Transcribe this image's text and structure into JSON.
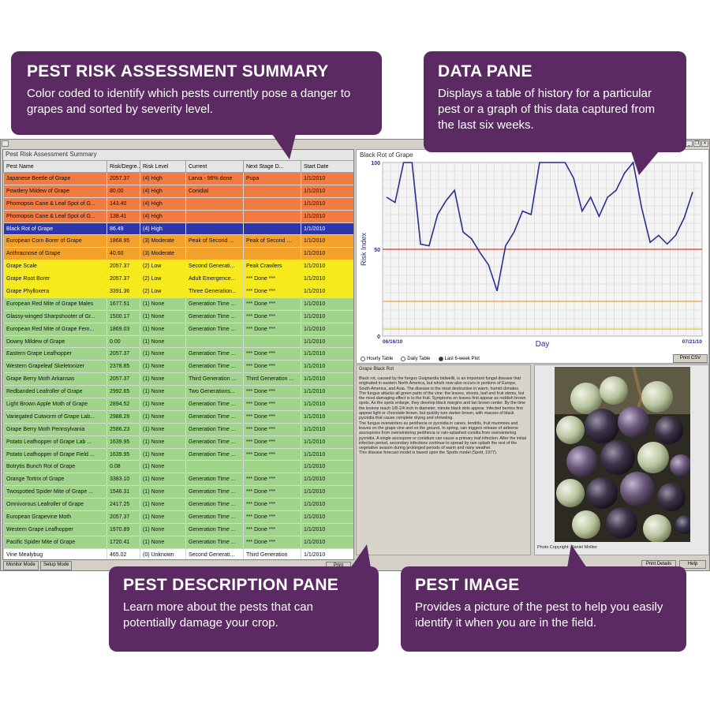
{
  "summary": {
    "caption": "Pest Risk Assessment Summary",
    "columns": [
      "Pest Name",
      "Risk/Degre...",
      "Risk Level",
      "Current",
      "Next Stage D...",
      "Start Date"
    ],
    "rows": [
      {
        "name": "Japanese Beetle of Grape",
        "value": "2057.37",
        "level": "(4) High",
        "current": "Larva - 96% done",
        "next": "Pupa",
        "start": "1/1/2010",
        "cls": "high"
      },
      {
        "name": "Powdery Mildew of Grape",
        "value": "80.00",
        "level": "(4) High",
        "current": "Conidial",
        "next": "",
        "start": "1/1/2010",
        "cls": "high"
      },
      {
        "name": "Phomopsis Cane & Leaf Spot of G...",
        "value": "143.40",
        "level": "(4) High",
        "current": "",
        "next": "",
        "start": "1/1/2010",
        "cls": "high"
      },
      {
        "name": "Phomopsis Cane & Leaf Spot of G...",
        "value": "138.41",
        "level": "(4) High",
        "current": "",
        "next": "",
        "start": "1/1/2010",
        "cls": "high"
      },
      {
        "name": "Black Rot of Grape",
        "value": "86.49",
        "level": "(4) High",
        "current": "",
        "next": "",
        "start": "1/1/2010",
        "cls": "selected"
      },
      {
        "name": "European Corn Borer of Grape",
        "value": "1868.95",
        "level": "(3) Moderate",
        "current": "Peak of Second ...",
        "next": "Peak of Second ...",
        "start": "1/1/2010",
        "cls": "moderate"
      },
      {
        "name": "Anthracnose of Grape",
        "value": "40.60",
        "level": "(3) Moderate",
        "current": "",
        "next": "",
        "start": "1/1/2010",
        "cls": "moderate"
      },
      {
        "name": "Grape Scale",
        "value": "2057.37",
        "level": "(2) Low",
        "current": "Second Generati...",
        "next": "Peak Crawlers",
        "start": "1/1/2010",
        "cls": "low"
      },
      {
        "name": "Grape Root Borer",
        "value": "2057.37",
        "level": "(2) Low",
        "current": "Adult Emergence...",
        "next": "*** Done ***",
        "start": "1/1/2010",
        "cls": "low"
      },
      {
        "name": "Grape Phylloxera",
        "value": "3391.36",
        "level": "(2) Low",
        "current": "Three Generation...",
        "next": "*** Done ***",
        "start": "1/1/2010",
        "cls": "low"
      },
      {
        "name": "European Red Mite of Grape Males",
        "value": "1677.51",
        "level": "(1) None",
        "current": "Generation Time ...",
        "next": "*** Done ***",
        "start": "1/1/2010",
        "cls": "none"
      },
      {
        "name": "Glassy-winged Sharpshooter of Gr...",
        "value": "1500.17",
        "level": "(1) None",
        "current": "Generation Time ...",
        "next": "*** Done ***",
        "start": "1/1/2010",
        "cls": "none"
      },
      {
        "name": "European Red Mite of Grape Fem...",
        "value": "1869.03",
        "level": "(1) None",
        "current": "Generation Time ...",
        "next": "*** Done ***",
        "start": "1/1/2010",
        "cls": "none"
      },
      {
        "name": "Downy Mildew of Grape",
        "value": "0.00",
        "level": "(1) None",
        "current": "",
        "next": "",
        "start": "1/1/2010",
        "cls": "none"
      },
      {
        "name": "Eastern Grape Leafhopper",
        "value": "2057.37",
        "level": "(1) None",
        "current": "Generation Time ...",
        "next": "*** Done ***",
        "start": "1/1/2010",
        "cls": "none"
      },
      {
        "name": "Western Grapeleaf Skeletonizer",
        "value": "2378.85",
        "level": "(1) None",
        "current": "Generation Time ...",
        "next": "*** Done ***",
        "start": "1/1/2010",
        "cls": "none"
      },
      {
        "name": "Grape Berry Moth Arkansas",
        "value": "2057.37",
        "level": "(1) None",
        "current": "Third Generation ...",
        "next": "Third Generation ...",
        "start": "1/1/2010",
        "cls": "none"
      },
      {
        "name": "Redbanded Leafroller of Grape",
        "value": "2992.65",
        "level": "(1) None",
        "current": "Two Generations...",
        "next": "*** Done ***",
        "start": "1/1/2010",
        "cls": "none"
      },
      {
        "name": "Light Brown Apple Moth of Grape",
        "value": "2894.52",
        "level": "(1) None",
        "current": "Generation Time ...",
        "next": "*** Done ***",
        "start": "1/1/2010",
        "cls": "none"
      },
      {
        "name": "Variegated Cutworm of Grape Lab...",
        "value": "2988.29",
        "level": "(1) None",
        "current": "Generation Time ...",
        "next": "*** Done ***",
        "start": "1/1/2010",
        "cls": "none"
      },
      {
        "name": "Grape Berry Moth Pennsylvania",
        "value": "2586.23",
        "level": "(1) None",
        "current": "Generation Time ...",
        "next": "*** Done ***",
        "start": "1/1/2010",
        "cls": "none"
      },
      {
        "name": "Potato Leafhopper of Grape Lab ...",
        "value": "1639.95",
        "level": "(1) None",
        "current": "Generation Time ...",
        "next": "*** Done ***",
        "start": "1/1/2010",
        "cls": "none"
      },
      {
        "name": "Potato Leafhopper of Grape Field ...",
        "value": "1639.95",
        "level": "(1) None",
        "current": "Generation Time ...",
        "next": "*** Done ***",
        "start": "1/1/2010",
        "cls": "none"
      },
      {
        "name": "Botrytis Bunch Rot of Grape",
        "value": "0.08",
        "level": "(1) None",
        "current": "",
        "next": "",
        "start": "1/1/2010",
        "cls": "none"
      },
      {
        "name": "Orange Tortrix of Grape",
        "value": "3383.10",
        "level": "(1) None",
        "current": "Generation Time ...",
        "next": "*** Done ***",
        "start": "1/1/2010",
        "cls": "none"
      },
      {
        "name": "Twospotted Spider Mite of Grape ...",
        "value": "1546.31",
        "level": "(1) None",
        "current": "Generation Time ...",
        "next": "*** Done ***",
        "start": "1/1/2010",
        "cls": "none"
      },
      {
        "name": "Omnivorous Leafroller of Grape",
        "value": "2417.25",
        "level": "(1) None",
        "current": "Generation Time ...",
        "next": "*** Done ***",
        "start": "1/1/2010",
        "cls": "none"
      },
      {
        "name": "European Grapevine Moth",
        "value": "2057.37",
        "level": "(1) None",
        "current": "Generation Time ...",
        "next": "*** Done ***",
        "start": "1/1/2010",
        "cls": "none"
      },
      {
        "name": "Western Grape Leafhopper",
        "value": "1970.89",
        "level": "(1) None",
        "current": "Generation Time ...",
        "next": "*** Done ***",
        "start": "1/1/2010",
        "cls": "none"
      },
      {
        "name": "Pacific Spider Mite of Grape",
        "value": "1720.41",
        "level": "(1) None",
        "current": "Generation Time ...",
        "next": "*** Done ***",
        "start": "1/1/2010",
        "cls": "none"
      },
      {
        "name": "Vine Mealybug",
        "value": "465.02",
        "level": "(0) Unknown",
        "current": "Second Generati...",
        "next": "Third Generation",
        "start": "1/1/2010",
        "cls": "unknown"
      }
    ]
  },
  "buttons": {
    "monitor_mode": "Monitor Mode",
    "setup_mode": "Setup Mode",
    "print_csv_left": "Print CSV",
    "print_csv": "Print CSV",
    "print_details": "Print Details",
    "help": "Help"
  },
  "graph": {
    "title": "Black Rot of Grape",
    "radio": [
      "Hourly Table",
      "Daily Table",
      "Last 6-week Plot"
    ],
    "radio_selected": 2
  },
  "chart_data": {
    "type": "line",
    "ylabel": "Risk Index",
    "xlabel": "Day",
    "x_start_label": "06/16/10",
    "x_end_label": "07/21/10",
    "ylim": [
      0,
      100
    ],
    "y_ticks": [
      "100",
      "50",
      "0"
    ],
    "threshold_lines": [
      {
        "value": 50,
        "color": "#d93a2a"
      },
      {
        "value": 20,
        "color": "#f2a03c"
      },
      {
        "value": 4,
        "color": "#e8d21a"
      }
    ],
    "series": [
      {
        "values": [
          80,
          77,
          100,
          100,
          53,
          52,
          70,
          78,
          84,
          60,
          56,
          48,
          41,
          26,
          52,
          60,
          72,
          70,
          100,
          100,
          100,
          100,
          91,
          72,
          80,
          69,
          80,
          84,
          94,
          100,
          74,
          54,
          58,
          53,
          58,
          68,
          83
        ]
      }
    ]
  },
  "description": {
    "title": "Grape Black Rot",
    "paragraphs": [
      "Black rot, caused by the fungus Guignardia bidwellii, is an important fungal disease that originated in eastern North America, but which now also occurs in portions of Europe, South America, and Asia. The disease is the most destructive in warm, humid climates.",
      "The fungus attacks all green parts of the vine: the leaves, shoots, leaf and fruit stems, but the most damaging effect is to the fruit. Symptoms on leaves first appear as reddish brown spots. As the spots enlarge, they develop black margins and tan brown center. By the time the lesions reach 1/8-1/4 inch in diameter, minute black dots appear. Infected berries first appear light or chocolate brown, but quickly turn darker brown, with masses of black pycnidia that cause complete drying and shriveling.",
      "The fungus overwinters as perithecia or pycnidia in canes, tendrils, fruit mummies and leaves on the grape vine and on the ground. In spring, rain triggers release of airborne ascospores from overwintering perithecia or rain-splashed conidia from overwintering pycnidia. A single ascospore or conidium can cause a primary leaf infection. After the initial infection period, secondary infections continue to spread by rain splash the rest of the vegetative season during prolonged periods of warm and rainy weather.",
      "This disease forecast model is based upon the Spotts model (Spott, 1977)."
    ]
  },
  "image": {
    "credit": "Photo Copyright: Daniel Molitor"
  },
  "callouts": {
    "summary": {
      "title": "PEST RISK ASSESSMENT SUMMARY",
      "text": "Color coded to identify which pests currently pose a danger to grapes and sorted by severity level."
    },
    "data": {
      "title": "DATA PANE",
      "text": "Displays a table of history for a particular pest or a graph of this data captured from the last six weeks."
    },
    "description": {
      "title": "PEST DESCRIPTION PANE",
      "text": "Learn more about the pests that can potentially damage your crop."
    },
    "image": {
      "title": "PEST IMAGE",
      "text": "Provides a picture of the pest to help you easily identify it when you are in the field."
    }
  },
  "colors": {
    "callout_bg": "#5b2a63",
    "high": "#f07b43",
    "selected": "#2f37a8",
    "moderate": "#f4a12c",
    "low": "#f6ea1d",
    "none": "#9fd48a",
    "series_line": "#2a2f8f"
  }
}
